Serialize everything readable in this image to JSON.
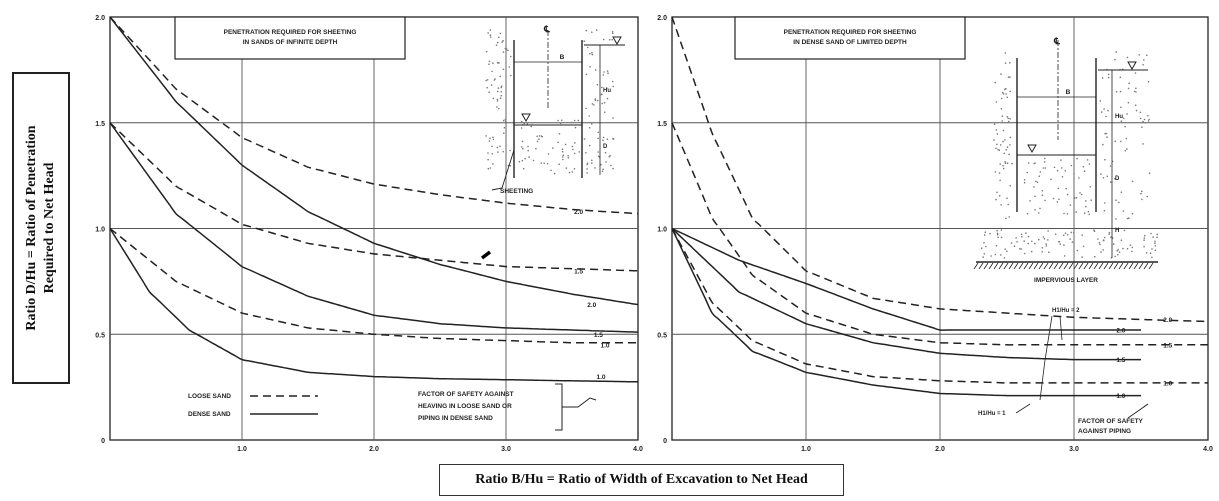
{
  "y_axis_label": {
    "line1": "Ratio D/Hu = Ratio of Penetration",
    "line2": "Required to Net Head"
  },
  "x_axis_label": "Ratio B/Hu = Ratio of Width of Excavation to Net Head",
  "colors": {
    "ink": "#222222",
    "grid": "#555555",
    "speckle": "#777777"
  },
  "chart_data": [
    {
      "type": "line",
      "title": "PENETRATION REQUIRED FOR SHEETING IN SANDS OF INFINITE DEPTH",
      "title_lines": [
        "PENETRATION REQUIRED FOR SHEETING",
        "IN SANDS OF INFINITE DEPTH"
      ],
      "xlim": [
        0,
        4.0
      ],
      "ylim": [
        0,
        2.0
      ],
      "x_ticks": [
        "1.0",
        "2.0",
        "3.0",
        "4.0"
      ],
      "y_ticks": [
        "0.5",
        "1.0",
        "1.5",
        "2.0"
      ],
      "origin_label": "0",
      "grid": true,
      "series": [
        {
          "name": "2.0",
          "style": "dashed",
          "x": [
            0,
            0.5,
            1.0,
            1.5,
            2.0,
            2.5,
            3.0,
            3.5,
            4.0
          ],
          "y": [
            2.0,
            1.66,
            1.43,
            1.29,
            1.21,
            1.16,
            1.12,
            1.09,
            1.07
          ]
        },
        {
          "name": "2.0",
          "style": "solid",
          "x": [
            0,
            0.5,
            1.0,
            1.5,
            2.0,
            2.5,
            3.0,
            3.5,
            4.0
          ],
          "y": [
            2.0,
            1.6,
            1.3,
            1.08,
            0.93,
            0.83,
            0.75,
            0.69,
            0.64
          ]
        },
        {
          "name": "1.5",
          "style": "dashed",
          "x": [
            0,
            0.5,
            1.0,
            1.5,
            2.0,
            2.5,
            3.0,
            3.5,
            4.0
          ],
          "y": [
            1.5,
            1.2,
            1.02,
            0.93,
            0.88,
            0.85,
            0.82,
            0.81,
            0.8
          ]
        },
        {
          "name": "1.5",
          "style": "solid",
          "x": [
            0,
            0.5,
            1.0,
            1.5,
            2.0,
            2.5,
            3.0,
            3.5,
            4.0
          ],
          "y": [
            1.5,
            1.07,
            0.82,
            0.68,
            0.59,
            0.55,
            0.53,
            0.52,
            0.51
          ]
        },
        {
          "name": "1.0",
          "style": "dashed",
          "x": [
            0,
            0.5,
            1.0,
            1.5,
            2.0,
            2.5,
            3.0,
            3.5,
            4.0
          ],
          "y": [
            1.0,
            0.75,
            0.6,
            0.53,
            0.5,
            0.48,
            0.47,
            0.46,
            0.46
          ]
        },
        {
          "name": "1.0",
          "style": "solid",
          "x": [
            0,
            0.3,
            0.6,
            1.0,
            1.5,
            2.0,
            2.5,
            3.0,
            3.5,
            4.0
          ],
          "y": [
            1.0,
            0.7,
            0.52,
            0.38,
            0.32,
            0.3,
            0.29,
            0.285,
            0.28,
            0.275
          ]
        }
      ],
      "curve_labels": [
        {
          "text": "2.0",
          "x": 3.55,
          "y": 1.08
        },
        {
          "text": "1.5",
          "x": 3.55,
          "y": 0.8
        },
        {
          "text": "2.0",
          "x": 3.65,
          "y": 0.64
        },
        {
          "text": "1.5",
          "x": 3.7,
          "y": 0.5
        },
        {
          "text": "1.0",
          "x": 3.75,
          "y": 0.45
        },
        {
          "text": "1.0",
          "x": 3.72,
          "y": 0.3
        }
      ],
      "legend": {
        "items": [
          {
            "label": "LOOSE SAND",
            "style": "dashed"
          },
          {
            "label": "DENSE SAND",
            "style": "solid"
          }
        ]
      },
      "annotation": [
        "FACTOR OF SAFETY AGAINST",
        "HEAVING IN LOOSE SAND OR",
        "PIPING IN DENSE SAND"
      ],
      "inset": {
        "dim_b": "B",
        "dim_hu": "Hu",
        "dim_d": "D",
        "callout": "SHEETING",
        "centerline": "℄"
      }
    },
    {
      "type": "line",
      "title": "PENETRATION REQUIRED FOR SHEETING IN DENSE SAND OF LIMITED DEPTH",
      "title_lines": [
        "PENETRATION REQUIRED FOR SHEETING",
        "IN DENSE SAND OF LIMITED DEPTH"
      ],
      "xlim": [
        0,
        4.0
      ],
      "ylim": [
        0,
        2.0
      ],
      "x_ticks": [
        "1.0",
        "2.0",
        "3.0",
        "4.0"
      ],
      "y_ticks": [
        "0.5",
        "1.0",
        "1.5",
        "2.0"
      ],
      "origin_label": "0",
      "grid": true,
      "series": [
        {
          "name": "2.0",
          "style": "dashed",
          "x": [
            0,
            0.3,
            0.6,
            1.0,
            1.5,
            2.0,
            2.5,
            3.0,
            3.5,
            4.0
          ],
          "y": [
            2.0,
            1.45,
            1.05,
            0.8,
            0.67,
            0.62,
            0.6,
            0.58,
            0.57,
            0.56
          ]
        },
        {
          "name": "1.5",
          "style": "dashed",
          "x": [
            0,
            0.3,
            0.6,
            1.0,
            1.5,
            2.0,
            2.5,
            3.0,
            3.5,
            4.0
          ],
          "y": [
            1.5,
            1.05,
            0.78,
            0.6,
            0.5,
            0.46,
            0.45,
            0.45,
            0.45,
            0.45
          ]
        },
        {
          "name": "1.0",
          "style": "dashed",
          "x": [
            0,
            0.3,
            0.6,
            1.0,
            1.5,
            2.0,
            2.5,
            3.0,
            3.5,
            4.0
          ],
          "y": [
            1.0,
            0.65,
            0.47,
            0.36,
            0.3,
            0.28,
            0.27,
            0.27,
            0.27,
            0.27
          ]
        },
        {
          "name": "H1/Hu = 2",
          "style": "solid",
          "x": [
            0,
            0.5,
            1.0,
            1.5,
            2.0,
            2.5,
            3.0,
            3.5
          ],
          "y": [
            1.0,
            0.85,
            0.74,
            0.62,
            0.52,
            0.52,
            0.52,
            0.52
          ]
        },
        {
          "name": "1.5",
          "style": "solid",
          "x": [
            0,
            0.5,
            1.0,
            1.5,
            2.0,
            2.5,
            3.0,
            3.5
          ],
          "y": [
            1.0,
            0.7,
            0.55,
            0.46,
            0.41,
            0.39,
            0.38,
            0.38
          ]
        },
        {
          "name": "H1/Hu = 1",
          "style": "solid",
          "x": [
            0,
            0.3,
            0.6,
            1.0,
            1.5,
            2.0,
            2.5,
            3.0,
            3.5
          ],
          "y": [
            1.0,
            0.6,
            0.42,
            0.32,
            0.26,
            0.22,
            0.21,
            0.21,
            0.21
          ]
        }
      ],
      "curve_labels": [
        {
          "text": "2.0",
          "x": 3.7,
          "y": 0.57
        },
        {
          "text": "2.0",
          "x": 3.35,
          "y": 0.52
        },
        {
          "text": "1.5",
          "x": 3.7,
          "y": 0.45
        },
        {
          "text": "1.5",
          "x": 3.35,
          "y": 0.38
        },
        {
          "text": "1.0",
          "x": 3.7,
          "y": 0.27
        },
        {
          "text": "1.0",
          "x": 3.35,
          "y": 0.21
        }
      ],
      "hh_labels": {
        "upper": "H1/Hu = 2",
        "lower": "H1/Hu = 1"
      },
      "annotation": [
        "FACTOR OF SAFETY",
        "AGAINST PIPING"
      ],
      "inset": {
        "dim_b": "B",
        "dim_hu": "Hu",
        "dim_d": "D",
        "dim_h": "H",
        "callout": "IMPERVIOUS LAYER",
        "centerline": "℄"
      }
    }
  ]
}
